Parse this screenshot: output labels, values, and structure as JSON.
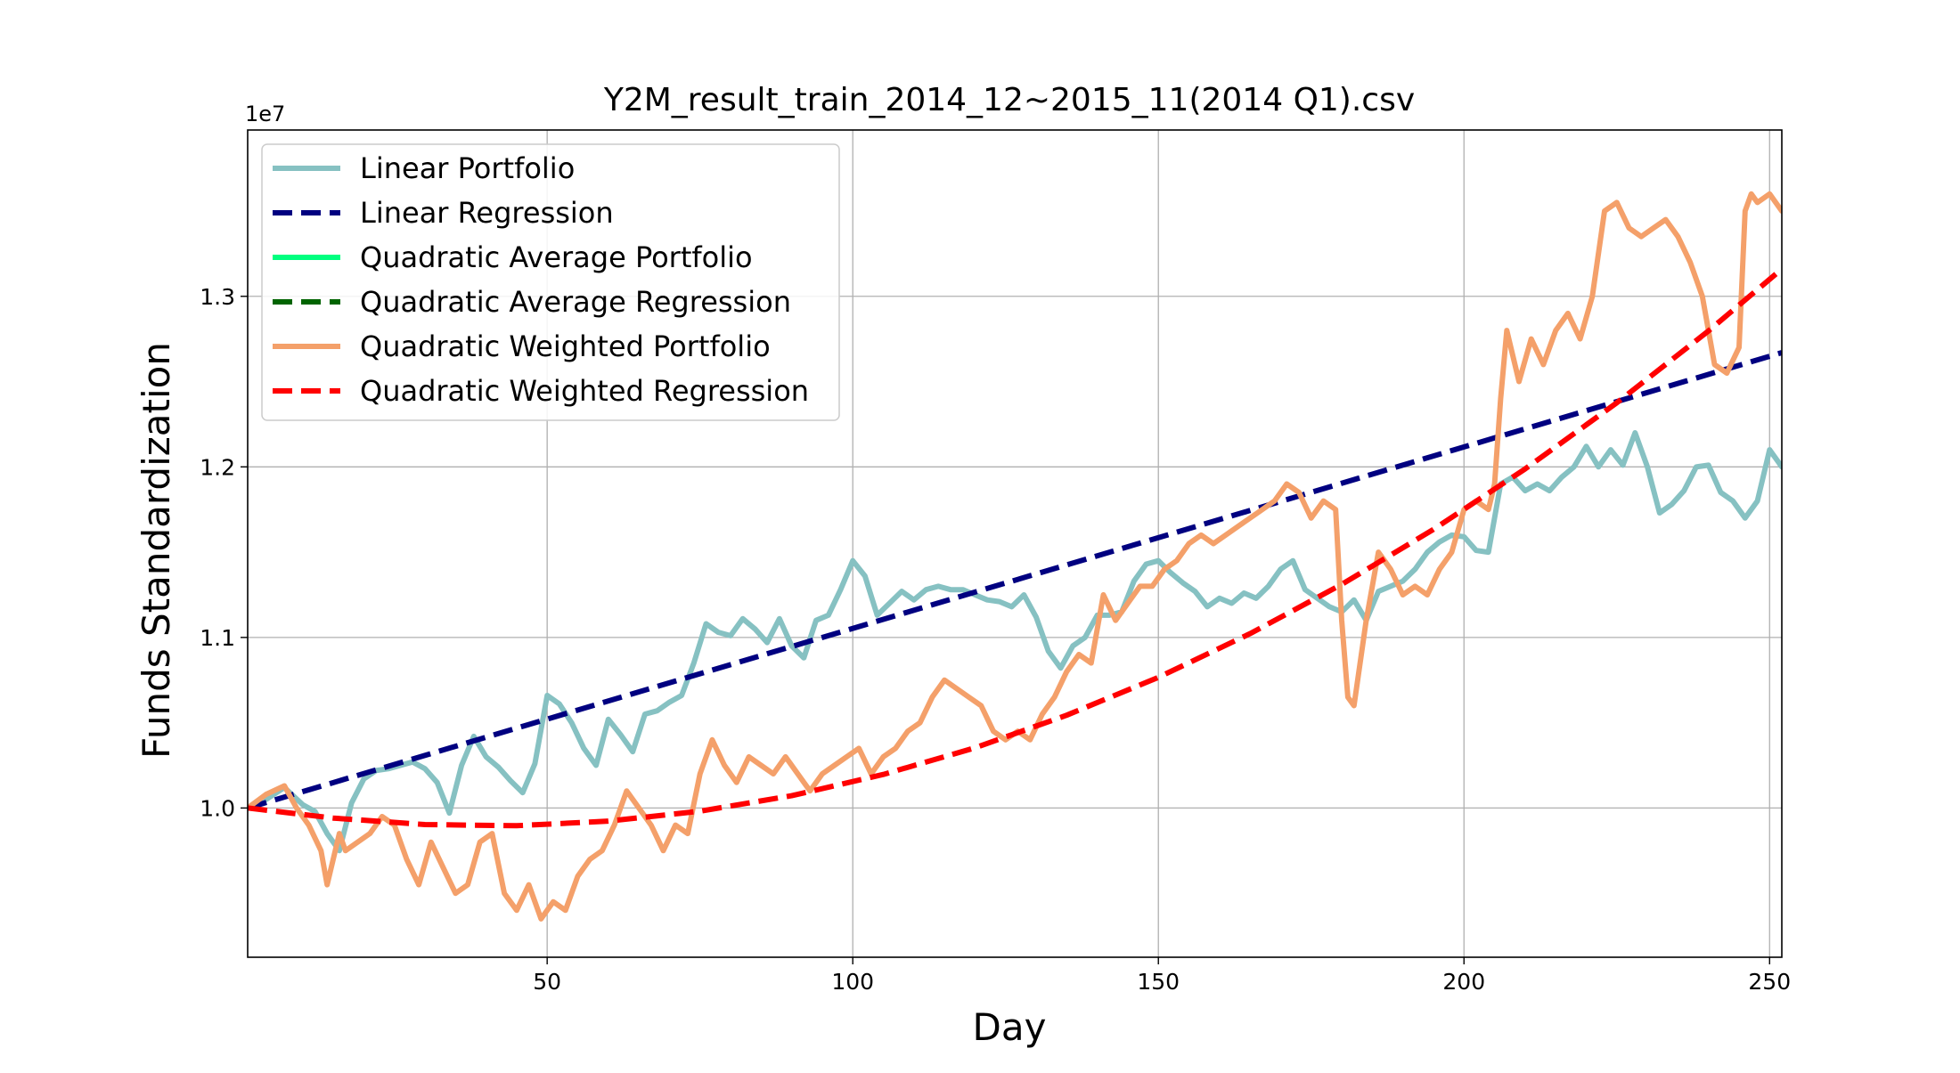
{
  "chart_data": {
    "type": "line",
    "title": "Y2M_result_train_2014_12~2015_11(2014 Q1).csv",
    "xlabel": "Day",
    "ylabel": "Funds Standardization",
    "y_offset_label": "1e7",
    "xlim": [
      1,
      252
    ],
    "ylim": [
      0.9125,
      1.3975
    ],
    "x_ticks": [
      50,
      100,
      150,
      200,
      250
    ],
    "x_tick_labels": [
      "50",
      "100",
      "150",
      "200",
      "250"
    ],
    "y_ticks": [
      1.0,
      1.1,
      1.2,
      1.3
    ],
    "y_tick_labels": [
      "1.0",
      "1.1",
      "1.2",
      "1.3"
    ],
    "grid": true,
    "legend_position": "upper-left",
    "series": [
      {
        "name": "Linear Portfolio",
        "style": "solid",
        "color": "#86c1c2",
        "points": [
          [
            1,
            1.0
          ],
          [
            4,
            1.005
          ],
          [
            7,
            1.012
          ],
          [
            10,
            1.002
          ],
          [
            12,
            0.998
          ],
          [
            14,
            0.985
          ],
          [
            16,
            0.975
          ],
          [
            18,
            1.003
          ],
          [
            20,
            1.017
          ],
          [
            22,
            1.022
          ],
          [
            24,
            1.023
          ],
          [
            26,
            1.025
          ],
          [
            28,
            1.027
          ],
          [
            30,
            1.023
          ],
          [
            32,
            1.015
          ],
          [
            34,
            0.997
          ],
          [
            36,
            1.025
          ],
          [
            38,
            1.042
          ],
          [
            40,
            1.03
          ],
          [
            42,
            1.024
          ],
          [
            44,
            1.016
          ],
          [
            46,
            1.009
          ],
          [
            48,
            1.026
          ],
          [
            50,
            1.066
          ],
          [
            52,
            1.061
          ],
          [
            54,
            1.05
          ],
          [
            56,
            1.035
          ],
          [
            58,
            1.025
          ],
          [
            60,
            1.052
          ],
          [
            62,
            1.043
          ],
          [
            64,
            1.033
          ],
          [
            66,
            1.055
          ],
          [
            68,
            1.057
          ],
          [
            70,
            1.062
          ],
          [
            72,
            1.066
          ],
          [
            74,
            1.085
          ],
          [
            76,
            1.108
          ],
          [
            78,
            1.103
          ],
          [
            80,
            1.101
          ],
          [
            82,
            1.111
          ],
          [
            84,
            1.105
          ],
          [
            86,
            1.097
          ],
          [
            88,
            1.111
          ],
          [
            90,
            1.095
          ],
          [
            92,
            1.088
          ],
          [
            94,
            1.11
          ],
          [
            96,
            1.113
          ],
          [
            98,
            1.128
          ],
          [
            100,
            1.145
          ],
          [
            102,
            1.136
          ],
          [
            104,
            1.113
          ],
          [
            106,
            1.12
          ],
          [
            108,
            1.127
          ],
          [
            110,
            1.122
          ],
          [
            112,
            1.128
          ],
          [
            114,
            1.13
          ],
          [
            116,
            1.128
          ],
          [
            118,
            1.128
          ],
          [
            120,
            1.125
          ],
          [
            122,
            1.122
          ],
          [
            124,
            1.121
          ],
          [
            126,
            1.118
          ],
          [
            128,
            1.125
          ],
          [
            130,
            1.112
          ],
          [
            132,
            1.092
          ],
          [
            134,
            1.082
          ],
          [
            136,
            1.095
          ],
          [
            138,
            1.1
          ],
          [
            140,
            1.113
          ],
          [
            142,
            1.113
          ],
          [
            144,
            1.115
          ],
          [
            146,
            1.133
          ],
          [
            148,
            1.143
          ],
          [
            150,
            1.145
          ],
          [
            152,
            1.138
          ],
          [
            154,
            1.132
          ],
          [
            156,
            1.127
          ],
          [
            158,
            1.118
          ],
          [
            160,
            1.123
          ],
          [
            162,
            1.12
          ],
          [
            164,
            1.126
          ],
          [
            166,
            1.123
          ],
          [
            168,
            1.13
          ],
          [
            170,
            1.14
          ],
          [
            172,
            1.145
          ],
          [
            174,
            1.128
          ],
          [
            176,
            1.123
          ],
          [
            178,
            1.118
          ],
          [
            180,
            1.115
          ],
          [
            182,
            1.122
          ],
          [
            184,
            1.11
          ],
          [
            186,
            1.127
          ],
          [
            188,
            1.13
          ],
          [
            190,
            1.133
          ],
          [
            192,
            1.14
          ],
          [
            194,
            1.15
          ],
          [
            196,
            1.156
          ],
          [
            198,
            1.16
          ],
          [
            200,
            1.159
          ],
          [
            202,
            1.151
          ],
          [
            204,
            1.15
          ],
          [
            206,
            1.19
          ],
          [
            208,
            1.194
          ],
          [
            210,
            1.186
          ],
          [
            212,
            1.19
          ],
          [
            214,
            1.186
          ],
          [
            216,
            1.194
          ],
          [
            218,
            1.2
          ],
          [
            220,
            1.212
          ],
          [
            222,
            1.2
          ],
          [
            224,
            1.21
          ],
          [
            226,
            1.201
          ],
          [
            228,
            1.22
          ],
          [
            230,
            1.2
          ],
          [
            232,
            1.173
          ],
          [
            234,
            1.178
          ],
          [
            236,
            1.186
          ],
          [
            238,
            1.2
          ],
          [
            240,
            1.201
          ],
          [
            242,
            1.185
          ],
          [
            244,
            1.18
          ],
          [
            246,
            1.17
          ],
          [
            248,
            1.18
          ],
          [
            250,
            1.21
          ],
          [
            252,
            1.2
          ]
        ]
      },
      {
        "name": "Linear Regression",
        "style": "dashed",
        "color": "#000080",
        "points": [
          [
            1,
            1.0
          ],
          [
            252,
            1.267
          ]
        ]
      },
      {
        "name": "Quadratic Average Portfolio",
        "style": "solid",
        "color": "#00ff7f",
        "points": []
      },
      {
        "name": "Quadratic Average Regression",
        "style": "dashed",
        "color": "#006400",
        "points": []
      },
      {
        "name": "Quadratic Weighted Portfolio",
        "style": "solid",
        "color": "#f4a06a",
        "points": [
          [
            1,
            1.0
          ],
          [
            4,
            1.008
          ],
          [
            7,
            1.013
          ],
          [
            9,
            1.0
          ],
          [
            11,
            0.99
          ],
          [
            13,
            0.975
          ],
          [
            14,
            0.955
          ],
          [
            16,
            0.985
          ],
          [
            17,
            0.975
          ],
          [
            19,
            0.98
          ],
          [
            21,
            0.985
          ],
          [
            23,
            0.995
          ],
          [
            25,
            0.99
          ],
          [
            27,
            0.97
          ],
          [
            29,
            0.955
          ],
          [
            31,
            0.98
          ],
          [
            33,
            0.965
          ],
          [
            35,
            0.95
          ],
          [
            37,
            0.955
          ],
          [
            39,
            0.98
          ],
          [
            41,
            0.985
          ],
          [
            43,
            0.95
          ],
          [
            45,
            0.94
          ],
          [
            47,
            0.955
          ],
          [
            49,
            0.935
          ],
          [
            51,
            0.945
          ],
          [
            53,
            0.94
          ],
          [
            55,
            0.96
          ],
          [
            57,
            0.97
          ],
          [
            59,
            0.975
          ],
          [
            61,
            0.99
          ],
          [
            63,
            1.01
          ],
          [
            65,
            1.0
          ],
          [
            67,
            0.99
          ],
          [
            69,
            0.975
          ],
          [
            71,
            0.99
          ],
          [
            73,
            0.985
          ],
          [
            75,
            1.02
          ],
          [
            77,
            1.04
          ],
          [
            79,
            1.025
          ],
          [
            81,
            1.015
          ],
          [
            83,
            1.03
          ],
          [
            85,
            1.025
          ],
          [
            87,
            1.02
          ],
          [
            89,
            1.03
          ],
          [
            91,
            1.02
          ],
          [
            93,
            1.01
          ],
          [
            95,
            1.02
          ],
          [
            97,
            1.025
          ],
          [
            99,
            1.03
          ],
          [
            101,
            1.035
          ],
          [
            103,
            1.02
          ],
          [
            105,
            1.03
          ],
          [
            107,
            1.035
          ],
          [
            109,
            1.045
          ],
          [
            111,
            1.05
          ],
          [
            113,
            1.065
          ],
          [
            115,
            1.075
          ],
          [
            117,
            1.07
          ],
          [
            119,
            1.065
          ],
          [
            121,
            1.06
          ],
          [
            123,
            1.045
          ],
          [
            125,
            1.04
          ],
          [
            127,
            1.045
          ],
          [
            129,
            1.04
          ],
          [
            131,
            1.055
          ],
          [
            133,
            1.065
          ],
          [
            135,
            1.08
          ],
          [
            137,
            1.09
          ],
          [
            139,
            1.085
          ],
          [
            141,
            1.125
          ],
          [
            143,
            1.11
          ],
          [
            145,
            1.12
          ],
          [
            147,
            1.13
          ],
          [
            149,
            1.13
          ],
          [
            151,
            1.14
          ],
          [
            153,
            1.145
          ],
          [
            155,
            1.155
          ],
          [
            157,
            1.16
          ],
          [
            159,
            1.155
          ],
          [
            161,
            1.16
          ],
          [
            163,
            1.165
          ],
          [
            165,
            1.17
          ],
          [
            167,
            1.175
          ],
          [
            169,
            1.18
          ],
          [
            171,
            1.19
          ],
          [
            173,
            1.185
          ],
          [
            175,
            1.17
          ],
          [
            177,
            1.18
          ],
          [
            179,
            1.175
          ],
          [
            180,
            1.11
          ],
          [
            181,
            1.065
          ],
          [
            182,
            1.06
          ],
          [
            184,
            1.11
          ],
          [
            186,
            1.15
          ],
          [
            188,
            1.14
          ],
          [
            190,
            1.125
          ],
          [
            192,
            1.13
          ],
          [
            194,
            1.125
          ],
          [
            196,
            1.14
          ],
          [
            198,
            1.15
          ],
          [
            200,
            1.175
          ],
          [
            202,
            1.18
          ],
          [
            204,
            1.175
          ],
          [
            205,
            1.19
          ],
          [
            206,
            1.24
          ],
          [
            207,
            1.28
          ],
          [
            209,
            1.25
          ],
          [
            211,
            1.275
          ],
          [
            213,
            1.26
          ],
          [
            215,
            1.28
          ],
          [
            217,
            1.29
          ],
          [
            219,
            1.275
          ],
          [
            221,
            1.3
          ],
          [
            223,
            1.35
          ],
          [
            225,
            1.355
          ],
          [
            227,
            1.34
          ],
          [
            229,
            1.335
          ],
          [
            231,
            1.34
          ],
          [
            233,
            1.345
          ],
          [
            235,
            1.335
          ],
          [
            237,
            1.32
          ],
          [
            239,
            1.3
          ],
          [
            241,
            1.26
          ],
          [
            243,
            1.255
          ],
          [
            245,
            1.27
          ],
          [
            246,
            1.35
          ],
          [
            247,
            1.36
          ],
          [
            248,
            1.355
          ],
          [
            250,
            1.36
          ],
          [
            252,
            1.35
          ]
        ]
      },
      {
        "name": "Quadratic Weighted Regression",
        "style": "dashed",
        "color": "#ff0000",
        "points": [
          [
            1,
            1.0
          ],
          [
            15,
            0.9941
          ],
          [
            30,
            0.9903
          ],
          [
            45,
            0.9896
          ],
          [
            60,
            0.9923
          ],
          [
            75,
            0.9981
          ],
          [
            90,
            1.0072
          ],
          [
            105,
            1.0197
          ],
          [
            120,
            1.0353
          ],
          [
            135,
            1.0544
          ],
          [
            150,
            1.0766
          ],
          [
            165,
            1.1022
          ],
          [
            180,
            1.1311
          ],
          [
            195,
            1.1633
          ],
          [
            210,
            1.1988
          ],
          [
            225,
            1.2376
          ],
          [
            240,
            1.2797
          ],
          [
            252,
            1.316
          ]
        ]
      }
    ]
  }
}
